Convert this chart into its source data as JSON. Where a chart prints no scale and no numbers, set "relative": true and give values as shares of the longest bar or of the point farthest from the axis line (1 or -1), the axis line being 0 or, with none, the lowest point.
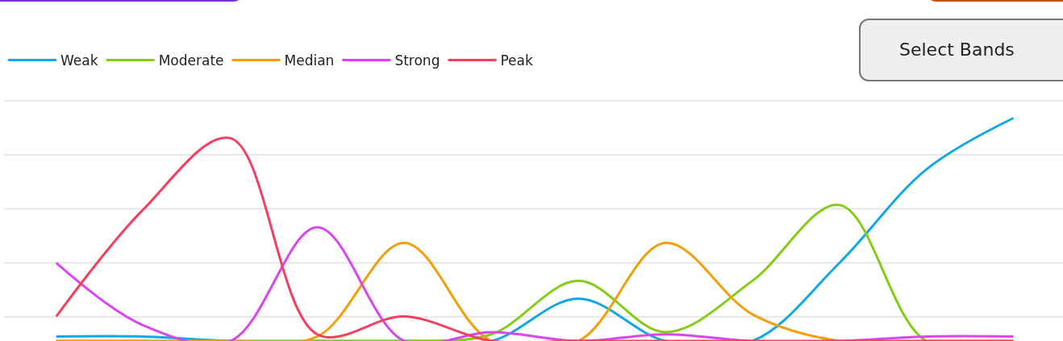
{
  "chart_data": {
    "type": "line",
    "relative": true,
    "grid": "y",
    "legend": "top left",
    "marker": "none",
    "line_style": "solid",
    "categories": [
      null,
      null,
      null,
      null,
      null,
      null,
      null,
      null,
      null,
      null,
      null,
      null
    ],
    "annotations": [
      "Select Bands"
    ],
    "series": [
      {
        "name": "Weak",
        "color": "#10a7e8",
        "values": [
          0.02,
          0.02,
          0,
          0,
          0,
          0,
          0.19,
          0,
          0,
          0.35,
          0.77,
          1
        ]
      },
      {
        "name": "Moderate",
        "color": "#84cc16",
        "values": [
          0,
          0,
          0,
          0,
          0,
          0.03,
          0.27,
          0.04,
          0.27,
          0.61,
          0,
          0
        ]
      },
      {
        "name": "Median",
        "color": "#f59e0b",
        "values": [
          0,
          0,
          0,
          0.02,
          0.44,
          0,
          0,
          0.44,
          0.12,
          0,
          0,
          0
        ]
      },
      {
        "name": "Strong",
        "color": "#d946ef",
        "values": [
          0.35,
          0.07,
          0,
          0.51,
          0,
          0.04,
          0,
          0.03,
          0,
          0,
          0.02,
          0.02
        ]
      },
      {
        "name": "Peak",
        "color": "#f43f5e",
        "values": [
          0.11,
          0.59,
          0.91,
          0.03,
          0.11,
          0,
          0,
          0,
          0,
          0,
          0,
          0
        ]
      }
    ]
  }
}
